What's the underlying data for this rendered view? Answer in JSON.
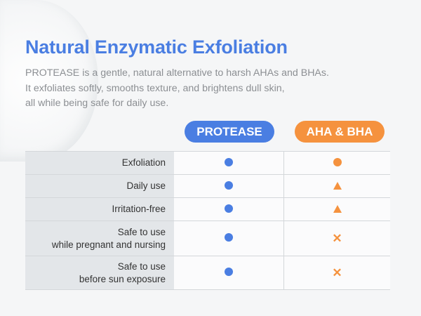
{
  "title": "Natural Enzymatic Exfoliation",
  "description": [
    "PROTEASE is a gentle, natural alternative to harsh AHAs and BHAs.",
    "It exfoliates softly, smooths texture, and brightens dull skin,",
    "all while being safe for daily use."
  ],
  "columns": [
    "PROTEASE",
    "AHA & BHA"
  ],
  "colors": {
    "protease": "#4a7ee2",
    "aha_bha": "#f5923e"
  },
  "rows": [
    {
      "label": [
        "Exfoliation"
      ],
      "protease": "circle",
      "aha_bha": "circle"
    },
    {
      "label": [
        "Daily use"
      ],
      "protease": "circle",
      "aha_bha": "triangle"
    },
    {
      "label": [
        "Irritation-free"
      ],
      "protease": "circle",
      "aha_bha": "triangle"
    },
    {
      "label": [
        "Safe to use",
        "while pregnant and nursing"
      ],
      "protease": "circle",
      "aha_bha": "cross"
    },
    {
      "label": [
        "Safe to use",
        "before sun exposure"
      ],
      "protease": "circle",
      "aha_bha": "cross"
    }
  ]
}
